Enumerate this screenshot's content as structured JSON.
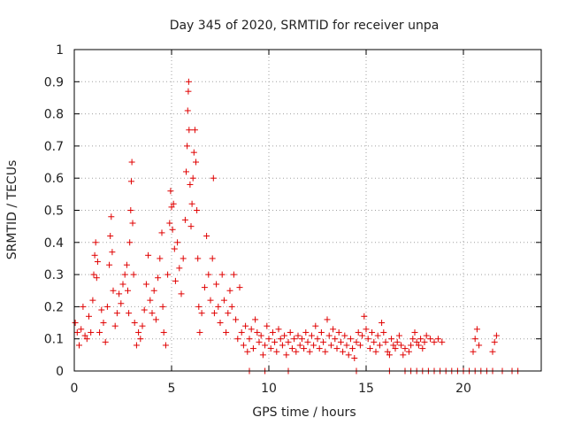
{
  "chart_data": {
    "type": "scatter",
    "title": "Day 345 of 2020, SRMTID for receiver unpa",
    "xlabel": "GPS time / hours",
    "ylabel": "SRMTID / TECUs",
    "xlim": [
      0,
      24
    ],
    "ylim": [
      0,
      1
    ],
    "x_ticks": [
      0,
      5,
      10,
      15,
      20
    ],
    "x_tick_labels": [
      "0",
      "5",
      "10",
      "15",
      "20"
    ],
    "y_ticks": [
      0,
      0.1,
      0.2,
      0.3,
      0.4,
      0.5,
      0.6,
      0.7,
      0.8,
      0.9,
      1
    ],
    "y_tick_labels": [
      "0",
      "0.1",
      "0.2",
      "0.3",
      "0.4",
      "0.5",
      "0.6",
      "0.7",
      "0.8",
      "0.9",
      "1"
    ],
    "grid": true,
    "marker": "+",
    "color": "#e00000",
    "series": [
      {
        "name": "SRMTID",
        "points": [
          [
            0.05,
            0.15
          ],
          [
            0.15,
            0.12
          ],
          [
            0.25,
            0.08
          ],
          [
            0.35,
            0.13
          ],
          [
            0.45,
            0.2
          ],
          [
            0.55,
            0.11
          ],
          [
            0.65,
            0.1
          ],
          [
            0.75,
            0.17
          ],
          [
            0.85,
            0.12
          ],
          [
            0.95,
            0.22
          ],
          [
            1.0,
            0.3
          ],
          [
            1.05,
            0.36
          ],
          [
            1.1,
            0.4
          ],
          [
            1.15,
            0.29
          ],
          [
            1.2,
            0.34
          ],
          [
            1.3,
            0.12
          ],
          [
            1.4,
            0.19
          ],
          [
            1.5,
            0.15
          ],
          [
            1.6,
            0.09
          ],
          [
            1.7,
            0.2
          ],
          [
            1.8,
            0.33
          ],
          [
            1.85,
            0.42
          ],
          [
            1.9,
            0.48
          ],
          [
            1.95,
            0.37
          ],
          [
            2.0,
            0.25
          ],
          [
            2.1,
            0.14
          ],
          [
            2.2,
            0.18
          ],
          [
            2.3,
            0.24
          ],
          [
            2.4,
            0.21
          ],
          [
            2.5,
            0.27
          ],
          [
            2.6,
            0.3
          ],
          [
            2.7,
            0.33
          ],
          [
            2.75,
            0.25
          ],
          [
            2.8,
            0.18
          ],
          [
            2.85,
            0.4
          ],
          [
            2.9,
            0.5
          ],
          [
            2.93,
            0.59
          ],
          [
            2.96,
            0.65
          ],
          [
            3.0,
            0.46
          ],
          [
            3.05,
            0.3
          ],
          [
            3.1,
            0.15
          ],
          [
            3.2,
            0.08
          ],
          [
            3.3,
            0.12
          ],
          [
            3.4,
            0.1
          ],
          [
            3.5,
            0.14
          ],
          [
            3.6,
            0.19
          ],
          [
            3.7,
            0.27
          ],
          [
            3.8,
            0.36
          ],
          [
            3.9,
            0.22
          ],
          [
            4.0,
            0.18
          ],
          [
            4.1,
            0.25
          ],
          [
            4.2,
            0.16
          ],
          [
            4.3,
            0.29
          ],
          [
            4.4,
            0.35
          ],
          [
            4.5,
            0.43
          ],
          [
            4.55,
            0.2
          ],
          [
            4.6,
            0.12
          ],
          [
            4.7,
            0.08
          ],
          [
            4.8,
            0.3
          ],
          [
            4.9,
            0.46
          ],
          [
            4.95,
            0.56
          ],
          [
            5.0,
            0.51
          ],
          [
            5.05,
            0.44
          ],
          [
            5.1,
            0.52
          ],
          [
            5.15,
            0.38
          ],
          [
            5.2,
            0.28
          ],
          [
            5.3,
            0.4
          ],
          [
            5.4,
            0.32
          ],
          [
            5.5,
            0.24
          ],
          [
            5.6,
            0.35
          ],
          [
            5.7,
            0.47
          ],
          [
            5.75,
            0.62
          ],
          [
            5.8,
            0.7
          ],
          [
            5.83,
            0.81
          ],
          [
            5.86,
            0.87
          ],
          [
            5.88,
            0.9
          ],
          [
            5.9,
            0.75
          ],
          [
            5.95,
            0.58
          ],
          [
            6.0,
            0.45
          ],
          [
            6.05,
            0.52
          ],
          [
            6.1,
            0.6
          ],
          [
            6.15,
            0.68
          ],
          [
            6.2,
            0.75
          ],
          [
            6.25,
            0.65
          ],
          [
            6.3,
            0.5
          ],
          [
            6.35,
            0.35
          ],
          [
            6.4,
            0.2
          ],
          [
            6.45,
            0.12
          ],
          [
            6.55,
            0.18
          ],
          [
            6.7,
            0.26
          ],
          [
            6.8,
            0.42
          ],
          [
            6.9,
            0.3
          ],
          [
            7.0,
            0.22
          ],
          [
            7.1,
            0.35
          ],
          [
            7.15,
            0.6
          ],
          [
            7.2,
            0.18
          ],
          [
            7.3,
            0.27
          ],
          [
            7.4,
            0.2
          ],
          [
            7.5,
            0.15
          ],
          [
            7.6,
            0.3
          ],
          [
            7.7,
            0.22
          ],
          [
            7.8,
            0.12
          ],
          [
            7.9,
            0.18
          ],
          [
            8.0,
            0.25
          ],
          [
            8.1,
            0.2
          ],
          [
            8.2,
            0.3
          ],
          [
            8.3,
            0.16
          ],
          [
            8.4,
            0.1
          ],
          [
            8.5,
            0.26
          ],
          [
            8.6,
            0.12
          ],
          [
            8.7,
            0.08
          ],
          [
            8.8,
            0.14
          ],
          [
            8.9,
            0.06
          ],
          [
            9.0,
            0.1
          ],
          [
            9.1,
            0.13
          ],
          [
            9.2,
            0.07
          ],
          [
            9.3,
            0.16
          ],
          [
            9.4,
            0.12
          ],
          [
            9.5,
            0.09
          ],
          [
            9.6,
            0.11
          ],
          [
            9.7,
            0.05
          ],
          [
            9.8,
            0.08
          ],
          [
            9.9,
            0.14
          ],
          [
            10.0,
            0.1
          ],
          [
            10.1,
            0.07
          ],
          [
            10.2,
            0.12
          ],
          [
            10.3,
            0.09
          ],
          [
            10.4,
            0.06
          ],
          [
            10.5,
            0.13
          ],
          [
            10.6,
            0.1
          ],
          [
            10.7,
            0.08
          ],
          [
            10.8,
            0.11
          ],
          [
            10.9,
            0.05
          ],
          [
            11.0,
            0.09
          ],
          [
            11.1,
            0.12
          ],
          [
            11.2,
            0.07
          ],
          [
            11.3,
            0.1
          ],
          [
            11.4,
            0.06
          ],
          [
            11.5,
            0.11
          ],
          [
            11.6,
            0.08
          ],
          [
            11.7,
            0.1
          ],
          [
            11.8,
            0.07
          ],
          [
            11.9,
            0.12
          ],
          [
            12.0,
            0.09
          ],
          [
            12.1,
            0.06
          ],
          [
            12.2,
            0.11
          ],
          [
            12.3,
            0.08
          ],
          [
            12.4,
            0.14
          ],
          [
            12.5,
            0.1
          ],
          [
            12.6,
            0.07
          ],
          [
            12.7,
            0.12
          ],
          [
            12.8,
            0.09
          ],
          [
            12.9,
            0.06
          ],
          [
            13.0,
            0.16
          ],
          [
            13.1,
            0.11
          ],
          [
            13.2,
            0.08
          ],
          [
            13.3,
            0.13
          ],
          [
            13.4,
            0.1
          ],
          [
            13.5,
            0.07
          ],
          [
            13.6,
            0.12
          ],
          [
            13.7,
            0.09
          ],
          [
            13.8,
            0.06
          ],
          [
            13.9,
            0.11
          ],
          [
            14.0,
            0.08
          ],
          [
            14.1,
            0.05
          ],
          [
            14.2,
            0.1
          ],
          [
            14.3,
            0.07
          ],
          [
            14.4,
            0.04
          ],
          [
            14.5,
            0.09
          ],
          [
            14.6,
            0.12
          ],
          [
            14.7,
            0.08
          ],
          [
            14.8,
            0.11
          ],
          [
            14.9,
            0.17
          ],
          [
            15.0,
            0.13
          ],
          [
            15.1,
            0.1
          ],
          [
            15.2,
            0.07
          ],
          [
            15.3,
            0.12
          ],
          [
            15.4,
            0.09
          ],
          [
            15.5,
            0.06
          ],
          [
            15.6,
            0.11
          ],
          [
            15.7,
            0.08
          ],
          [
            15.8,
            0.15
          ],
          [
            15.9,
            0.12
          ],
          [
            16.0,
            0.09
          ],
          [
            16.1,
            0.06
          ],
          [
            16.2,
            0.05
          ],
          [
            16.3,
            0.1
          ],
          [
            16.4,
            0.08
          ],
          [
            16.5,
            0.07
          ],
          [
            16.6,
            0.09
          ],
          [
            16.7,
            0.11
          ],
          [
            16.8,
            0.08
          ],
          [
            16.9,
            0.05
          ],
          [
            17.0,
            0.07
          ],
          [
            17.2,
            0.06
          ],
          [
            17.3,
            0.08
          ],
          [
            17.4,
            0.1
          ],
          [
            17.5,
            0.12
          ],
          [
            17.6,
            0.09
          ],
          [
            17.7,
            0.08
          ],
          [
            17.8,
            0.1
          ],
          [
            17.9,
            0.07
          ],
          [
            18.0,
            0.09
          ],
          [
            18.1,
            0.11
          ],
          [
            18.3,
            0.1
          ],
          [
            18.5,
            0.09
          ],
          [
            18.7,
            0.1
          ],
          [
            18.9,
            0.09
          ],
          [
            20.5,
            0.06
          ],
          [
            20.6,
            0.1
          ],
          [
            20.7,
            0.13
          ],
          [
            20.8,
            0.08
          ],
          [
            21.5,
            0.06
          ],
          [
            21.6,
            0.09
          ],
          [
            21.7,
            0.11
          ],
          [
            22.0,
            0.0
          ],
          [
            22.5,
            0.0
          ],
          [
            22.8,
            0.0
          ],
          [
            9.0,
            0.0
          ],
          [
            9.8,
            0.0
          ],
          [
            11.0,
            0.0
          ],
          [
            14.5,
            0.0
          ],
          [
            16.2,
            0.0
          ],
          [
            17.0,
            0.0
          ],
          [
            17.3,
            0.0
          ],
          [
            17.6,
            0.0
          ],
          [
            17.9,
            0.0
          ],
          [
            18.2,
            0.0
          ],
          [
            18.5,
            0.0
          ],
          [
            18.8,
            0.0
          ],
          [
            19.1,
            0.0
          ],
          [
            19.4,
            0.0
          ],
          [
            19.7,
            0.0
          ],
          [
            20.0,
            0.0
          ],
          [
            20.3,
            0.0
          ],
          [
            20.6,
            0.0
          ],
          [
            20.9,
            0.0
          ],
          [
            21.2,
            0.0
          ],
          [
            21.5,
            0.0
          ]
        ]
      }
    ]
  }
}
